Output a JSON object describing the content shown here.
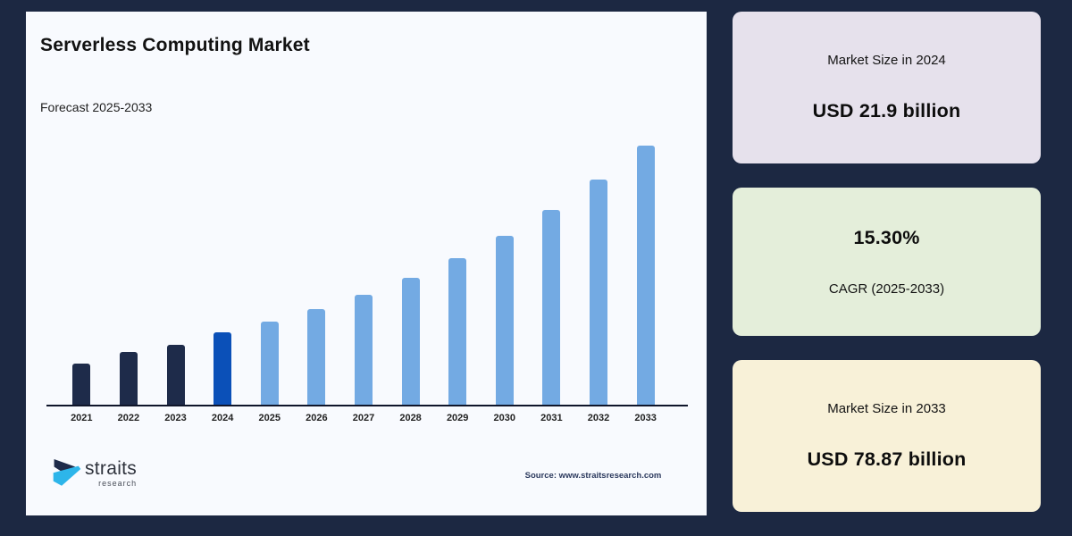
{
  "page": {
    "background": "#1c2842",
    "card_background": "#f8fafe"
  },
  "header": {
    "title": "Serverless Computing Market",
    "subtitle": "Forecast 2025-2033"
  },
  "chart_data": {
    "type": "bar",
    "title": "Serverless Computing Market",
    "subtitle": "Forecast 2025-2033",
    "unit": "USD billion",
    "categories": [
      "2021",
      "2022",
      "2023",
      "2024",
      "2025",
      "2026",
      "2027",
      "2028",
      "2029",
      "2030",
      "2031",
      "2032",
      "2033"
    ],
    "values": [
      12.5,
      16.0,
      18.1,
      21.9,
      25.25,
      29.11,
      33.57,
      38.7,
      44.63,
      51.45,
      59.33,
      68.4,
      78.87
    ],
    "bar_roles": [
      "historical",
      "historical",
      "historical",
      "current",
      "forecast",
      "forecast",
      "forecast",
      "forecast",
      "forecast",
      "forecast",
      "forecast",
      "forecast",
      "forecast"
    ],
    "role_colors": {
      "historical": "#1e2b4a",
      "current": "#0b50b8",
      "forecast": "#73aae3"
    },
    "xlabel": "",
    "ylabel": "",
    "ylim": [
      0,
      80
    ],
    "grid": false,
    "legend": "none",
    "axis_color": "#0f152a"
  },
  "panels": [
    {
      "label": "Market Size in 2024",
      "value": "USD 21.9 billion",
      "bg": "#e6e1ec"
    },
    {
      "value": "15.30%",
      "label": "CAGR (2025-2033)",
      "bg": "#e4eeda"
    },
    {
      "label": "Market Size in 2033",
      "value": "USD 78.87 billion",
      "bg": "#f8f1d8"
    }
  ],
  "footer": {
    "logo_text": "straits",
    "logo_subtext": "research",
    "source": "Source: www.straitsresearch.com",
    "logo_colors": {
      "dark": "#1e2b4a",
      "cyan": "#2db5ea"
    }
  }
}
